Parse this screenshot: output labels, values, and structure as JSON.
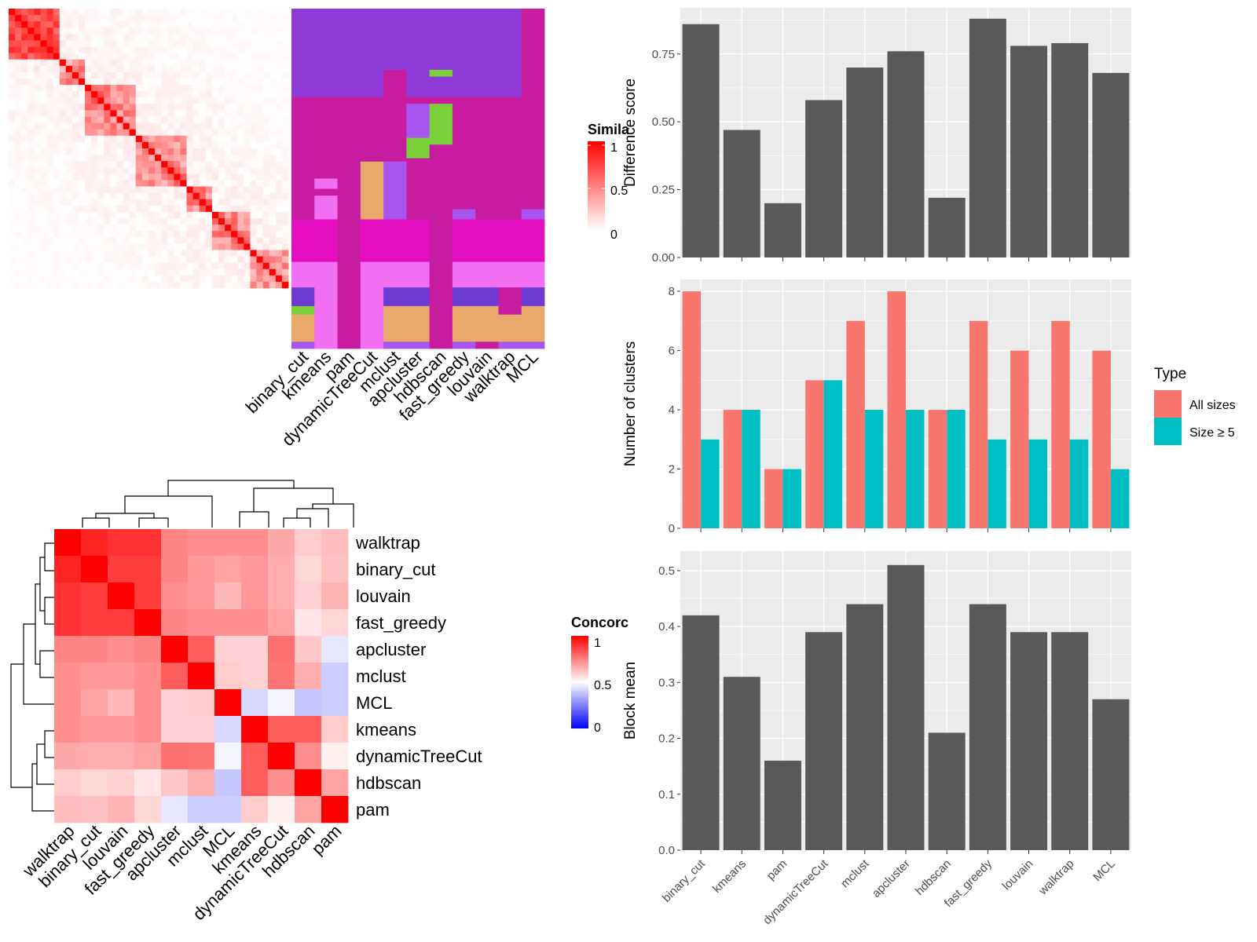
{
  "colors": {
    "panel_bg": "#ebebeb",
    "grid": "#ffffff",
    "bar": "#595959",
    "all_sizes": "#f8766d",
    "size_ge_5": "#00bfc4",
    "similarity_high": "#ff0000",
    "concordance_high": "#ff0000",
    "concordance_mid": "#ffffff",
    "concordance_low": "#0000ff"
  },
  "methods_top": [
    "binary_cut",
    "kmeans",
    "pam",
    "dynamicTreeCut",
    "mclust",
    "apcluster",
    "hdbscan",
    "fast_greedy",
    "louvain",
    "walktrap",
    "MCL"
  ],
  "legends": {
    "similarity": {
      "title": "Simila",
      "ticks": [
        "1",
        "0.5",
        "0"
      ]
    },
    "concordance": {
      "title": "Concorc",
      "ticks": [
        "1",
        "0.5",
        "0"
      ]
    },
    "type": {
      "title": "Type",
      "items": [
        "All sizes",
        "Size ≥ 5"
      ]
    }
  },
  "chart_data": [
    {
      "type": "bar",
      "ylabel": "Difference score",
      "categories": [
        "binary_cut",
        "kmeans",
        "pam",
        "dynamicTreeCut",
        "mclust",
        "apcluster",
        "hdbscan",
        "fast_greedy",
        "louvain",
        "walktrap",
        "MCL"
      ],
      "values": [
        0.86,
        0.47,
        0.2,
        0.58,
        0.7,
        0.76,
        0.22,
        0.88,
        0.78,
        0.79,
        0.68
      ],
      "ylim": [
        0,
        0.92
      ],
      "yticks": [
        "0.00",
        "0.25",
        "0.50",
        "0.75"
      ],
      "ytick_values": [
        0,
        0.25,
        0.5,
        0.75
      ]
    },
    {
      "type": "bar",
      "ylabel": "Number of clusters",
      "categories": [
        "binary_cut",
        "kmeans",
        "pam",
        "dynamicTreeCut",
        "mclust",
        "apcluster",
        "hdbscan",
        "fast_greedy",
        "louvain",
        "walktrap",
        "MCL"
      ],
      "series": [
        {
          "name": "All sizes",
          "values": [
            8,
            4,
            2,
            5,
            7,
            8,
            4,
            7,
            6,
            7,
            6
          ]
        },
        {
          "name": "Size ≥ 5",
          "values": [
            3,
            4,
            2,
            5,
            4,
            4,
            4,
            3,
            3,
            3,
            2
          ]
        }
      ],
      "ylim": [
        0,
        8.4
      ],
      "yticks": [
        "0",
        "2",
        "4",
        "6",
        "8"
      ],
      "ytick_values": [
        0,
        2,
        4,
        6,
        8
      ]
    },
    {
      "type": "bar",
      "ylabel": "Block mean",
      "categories": [
        "binary_cut",
        "kmeans",
        "pam",
        "dynamicTreeCut",
        "mclust",
        "apcluster",
        "hdbscan",
        "fast_greedy",
        "louvain",
        "walktrap",
        "MCL"
      ],
      "values": [
        0.42,
        0.31,
        0.16,
        0.39,
        0.44,
        0.51,
        0.21,
        0.44,
        0.39,
        0.39,
        0.27
      ],
      "ylim": [
        0,
        0.535
      ],
      "yticks": [
        "0.0",
        "0.1",
        "0.2",
        "0.3",
        "0.4",
        "0.5"
      ],
      "ytick_values": [
        0,
        0.1,
        0.2,
        0.3,
        0.4,
        0.5
      ]
    },
    {
      "type": "heatmap",
      "rows": [
        "walktrap",
        "binary_cut",
        "louvain",
        "fast_greedy",
        "apcluster",
        "mclust",
        "MCL",
        "kmeans",
        "dynamicTreeCut",
        "hdbscan",
        "pam"
      ],
      "cols": [
        "walktrap",
        "binary_cut",
        "louvain",
        "fast_greedy",
        "apcluster",
        "mclust",
        "MCL",
        "kmeans",
        "dynamicTreeCut",
        "hdbscan",
        "pam"
      ],
      "values": [
        [
          1.0,
          0.93,
          0.9,
          0.9,
          0.74,
          0.72,
          0.72,
          0.72,
          0.67,
          0.6,
          0.63
        ],
        [
          0.93,
          1.0,
          0.88,
          0.88,
          0.74,
          0.7,
          0.68,
          0.7,
          0.66,
          0.58,
          0.62
        ],
        [
          0.9,
          0.88,
          1.0,
          0.88,
          0.72,
          0.7,
          0.64,
          0.7,
          0.66,
          0.59,
          0.65
        ],
        [
          0.9,
          0.88,
          0.88,
          1.0,
          0.74,
          0.72,
          0.72,
          0.72,
          0.68,
          0.55,
          0.58
        ],
        [
          0.74,
          0.74,
          0.72,
          0.74,
          1.0,
          0.82,
          0.59,
          0.59,
          0.78,
          0.61,
          0.45
        ],
        [
          0.72,
          0.7,
          0.7,
          0.72,
          0.82,
          1.0,
          0.6,
          0.59,
          0.77,
          0.66,
          0.4
        ],
        [
          0.72,
          0.68,
          0.64,
          0.72,
          0.59,
          0.6,
          1.0,
          0.42,
          0.48,
          0.39,
          0.4
        ],
        [
          0.72,
          0.7,
          0.7,
          0.72,
          0.59,
          0.59,
          0.42,
          1.0,
          0.82,
          0.82,
          0.6
        ],
        [
          0.67,
          0.66,
          0.66,
          0.68,
          0.78,
          0.77,
          0.48,
          0.82,
          1.0,
          0.72,
          0.53
        ],
        [
          0.6,
          0.58,
          0.59,
          0.55,
          0.61,
          0.66,
          0.39,
          0.82,
          0.72,
          1.0,
          0.68
        ],
        [
          0.63,
          0.62,
          0.65,
          0.58,
          0.45,
          0.4,
          0.4,
          0.6,
          0.53,
          0.68,
          1.0
        ]
      ]
    }
  ]
}
